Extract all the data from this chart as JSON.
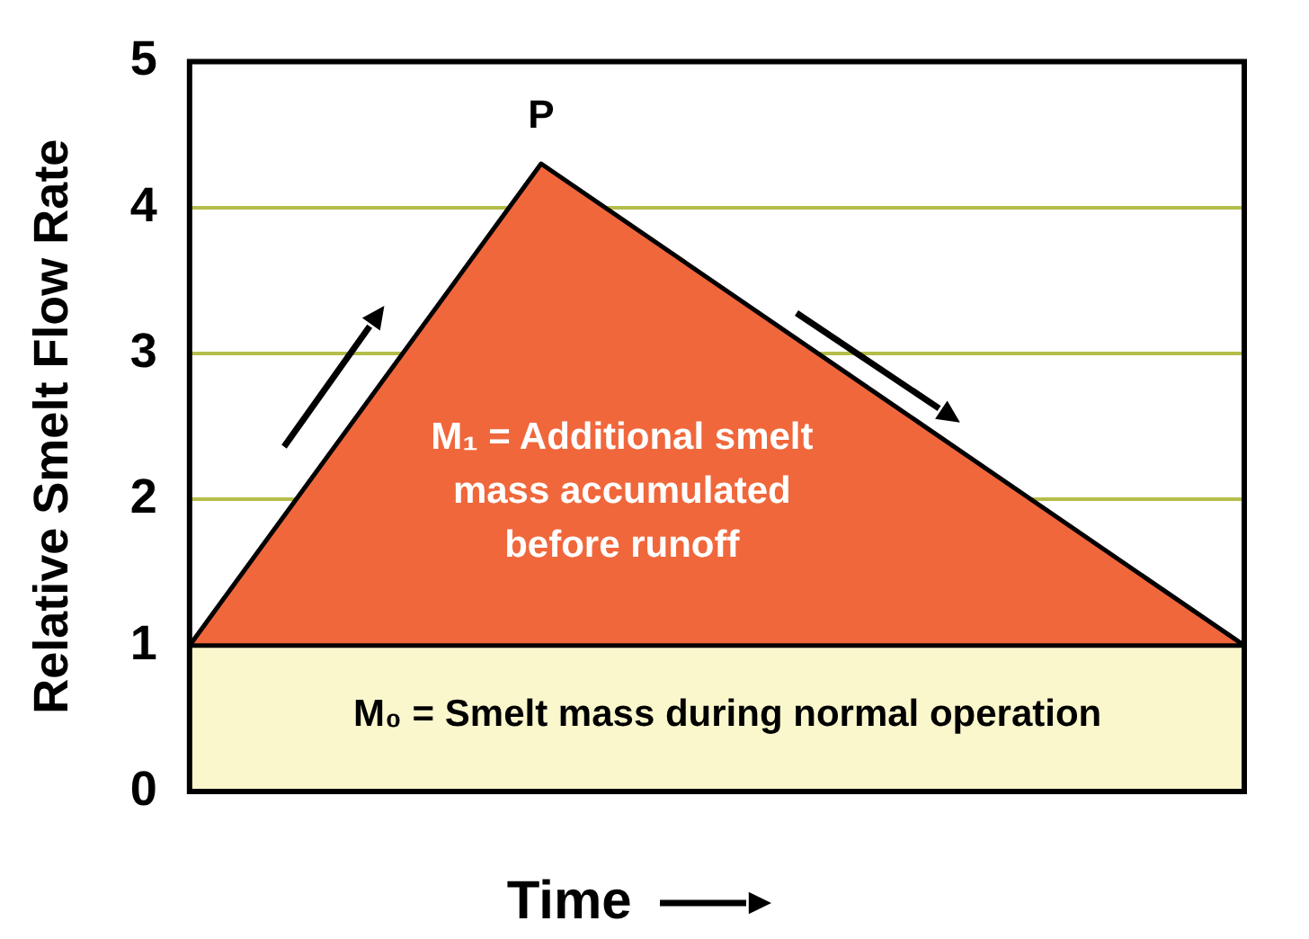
{
  "chart_data": {
    "type": "area",
    "xlabel": "Time",
    "ylabel": "Relative Smelt Flow Rate",
    "categories": [
      null,
      null,
      null,
      null
    ],
    "ylim": [
      0,
      5
    ],
    "yticks": [
      0,
      1,
      2,
      3,
      4,
      5
    ],
    "grid": "y",
    "tick_labels": "y",
    "legend": false,
    "series": [
      {
        "color": "#fbf7cd",
        "values": [
          1,
          1,
          1,
          1
        ]
      },
      {
        "color": "#f0673c",
        "values": [
          1,
          4.3,
          2.65,
          1
        ]
      }
    ],
    "annotations": [
      {
        "text": "P",
        "y": 4.3
      },
      "M₁ = Additional smelt mass accumulated before runoff",
      "M₀ = Smelt mass during normal operation"
    ]
  }
}
